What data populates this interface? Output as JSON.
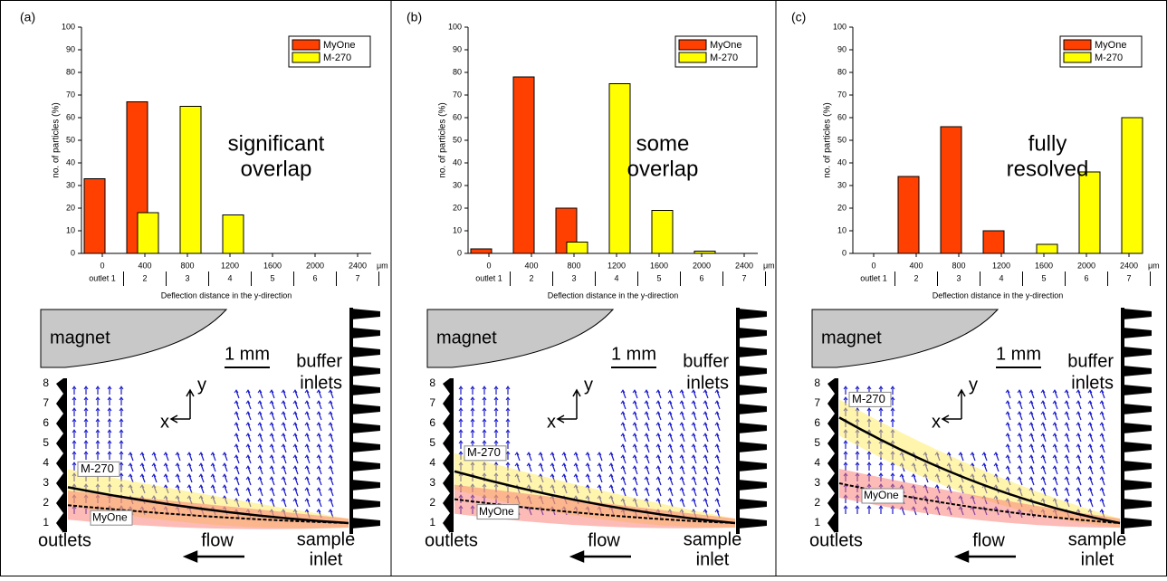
{
  "chart_data": [
    {
      "type": "bar",
      "panel_label": "(a)",
      "annotation": [
        "significant",
        "overlap"
      ],
      "ylabel": "no. of particles (%)",
      "xlabel": "Deflection distance in the y-direction",
      "x_unit": "μm",
      "categories": [
        "0",
        "400",
        "800",
        "1200",
        "1600",
        "2000",
        "2400"
      ],
      "outlet_labels": [
        "outlet 1",
        "2",
        "3",
        "4",
        "5",
        "6",
        "7"
      ],
      "series": [
        {
          "name": "MyOne",
          "color": "#ff4000",
          "values": [
            33,
            67,
            0,
            0,
            0,
            0,
            0
          ]
        },
        {
          "name": "M-270",
          "color": "#ffff00",
          "values": [
            0,
            18,
            65,
            17,
            0,
            0,
            0
          ]
        }
      ],
      "ylim": [
        0,
        100
      ],
      "yticks": [
        0,
        10,
        20,
        30,
        40,
        50,
        60,
        70,
        80,
        90,
        100
      ],
      "legend": "upper right"
    },
    {
      "type": "bar",
      "panel_label": "(b)",
      "annotation": [
        "some",
        "overlap"
      ],
      "ylabel": "no. of particles (%)",
      "xlabel": "Deflection distance in the y-direction",
      "x_unit": "μm",
      "categories": [
        "0",
        "400",
        "800",
        "1200",
        "1600",
        "2000",
        "2400"
      ],
      "outlet_labels": [
        "outlet 1",
        "2",
        "3",
        "4",
        "5",
        "6",
        "7"
      ],
      "series": [
        {
          "name": "MyOne",
          "color": "#ff4000",
          "values": [
            2,
            78,
            20,
            0,
            0,
            0,
            0
          ]
        },
        {
          "name": "M-270",
          "color": "#ffff00",
          "values": [
            0,
            0,
            5,
            75,
            19,
            1,
            0
          ]
        }
      ],
      "ylim": [
        0,
        100
      ],
      "yticks": [
        0,
        10,
        20,
        30,
        40,
        50,
        60,
        70,
        80,
        90,
        100
      ],
      "legend": "upper right"
    },
    {
      "type": "bar",
      "panel_label": "(c)",
      "annotation": [
        "fully",
        "resolved"
      ],
      "ylabel": "no. of particles (%)",
      "xlabel": "Deflection distance in the y-direction",
      "x_unit": "μm",
      "categories": [
        "0",
        "400",
        "800",
        "1200",
        "1600",
        "2000",
        "2400"
      ],
      "outlet_labels": [
        "outlet 1",
        "2",
        "3",
        "4",
        "5",
        "6",
        "7"
      ],
      "series": [
        {
          "name": "MyOne",
          "color": "#ff4000",
          "values": [
            0,
            34,
            56,
            10,
            0,
            0,
            0
          ]
        },
        {
          "name": "M-270",
          "color": "#ffff00",
          "values": [
            0,
            0,
            0,
            0,
            4,
            36,
            60
          ]
        }
      ],
      "ylim": [
        0,
        100
      ],
      "yticks": [
        0,
        10,
        20,
        30,
        40,
        50,
        60,
        70,
        80,
        90,
        100
      ],
      "legend": "upper right"
    }
  ],
  "diagrams": [
    {
      "magnet": "magnet",
      "scale": "1 mm",
      "buffer_inlets": [
        "buffer",
        "inlets"
      ],
      "outlets": "outlets",
      "flow": "flow",
      "sample_inlet": [
        "sample",
        "inlet"
      ],
      "x_axis": "x",
      "y_axis": "y",
      "upper_label": "M-270",
      "lower_label": "MyOne",
      "outlet_numbers": [
        "1",
        "2",
        "3",
        "4",
        "5",
        "6",
        "7",
        "8"
      ]
    },
    {
      "magnet": "magnet",
      "scale": "1 mm",
      "buffer_inlets": [
        "buffer",
        "inlets"
      ],
      "outlets": "outlets",
      "flow": "flow",
      "sample_inlet": [
        "sample",
        "inlet"
      ],
      "x_axis": "x",
      "y_axis": "y",
      "upper_label": "M-270",
      "lower_label": "MyOne",
      "outlet_numbers": [
        "1",
        "2",
        "3",
        "4",
        "5",
        "6",
        "7",
        "8"
      ]
    },
    {
      "magnet": "magnet",
      "scale": "1 mm",
      "buffer_inlets": [
        "buffer",
        "inlets"
      ],
      "outlets": "outlets",
      "flow": "flow",
      "sample_inlet": [
        "sample",
        "inlet"
      ],
      "x_axis": "x",
      "y_axis": "y",
      "upper_label": "M-270",
      "lower_label": "MyOne",
      "outlet_numbers": [
        "1",
        "2",
        "3",
        "4",
        "5",
        "6",
        "7",
        "8"
      ]
    }
  ]
}
